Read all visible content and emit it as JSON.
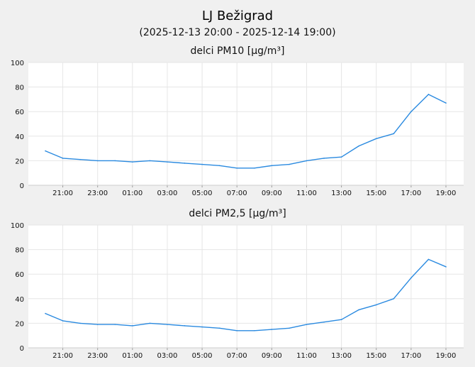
{
  "header": {
    "title": "LJ Bežigrad",
    "subtitle": "(2025-12-13 20:00 - 2025-12-14 19:00)"
  },
  "colors": {
    "background": "#f0f0f0",
    "plot_background": "#ffffff",
    "line": "#2a8ae0",
    "grid": "#e6e6e6"
  },
  "chart_data": [
    {
      "type": "line",
      "title": "delci PM10 [µg/m³]",
      "x_tick_labels": [
        "21:00",
        "23:00",
        "01:00",
        "03:00",
        "05:00",
        "07:00",
        "09:00",
        "11:00",
        "13:00",
        "15:00",
        "17:00",
        "19:00"
      ],
      "x": [
        "20:00",
        "21:00",
        "22:00",
        "23:00",
        "00:00",
        "01:00",
        "02:00",
        "03:00",
        "04:00",
        "05:00",
        "06:00",
        "07:00",
        "08:00",
        "09:00",
        "10:00",
        "11:00",
        "12:00",
        "13:00",
        "14:00",
        "15:00",
        "16:00",
        "17:00",
        "18:00",
        "19:00"
      ],
      "series": [
        {
          "values": [
            28,
            22,
            21,
            20,
            20,
            19,
            20,
            19,
            18,
            17,
            16,
            14,
            14,
            16,
            17,
            20,
            22,
            23,
            32,
            38,
            42,
            60,
            74,
            67
          ]
        }
      ],
      "y_ticks": [
        0,
        20,
        40,
        60,
        80,
        100
      ],
      "ylim": [
        0,
        100
      ],
      "grid": true
    },
    {
      "type": "line",
      "title": "delci PM2,5 [µg/m³]",
      "x_tick_labels": [
        "21:00",
        "23:00",
        "01:00",
        "03:00",
        "05:00",
        "07:00",
        "09:00",
        "11:00",
        "13:00",
        "15:00",
        "17:00",
        "19:00"
      ],
      "x": [
        "20:00",
        "21:00",
        "22:00",
        "23:00",
        "00:00",
        "01:00",
        "02:00",
        "03:00",
        "04:00",
        "05:00",
        "06:00",
        "07:00",
        "08:00",
        "09:00",
        "10:00",
        "11:00",
        "12:00",
        "13:00",
        "14:00",
        "15:00",
        "16:00",
        "17:00",
        "18:00",
        "19:00"
      ],
      "series": [
        {
          "values": [
            28,
            22,
            20,
            19,
            19,
            18,
            20,
            19,
            18,
            17,
            16,
            14,
            14,
            15,
            16,
            19,
            21,
            23,
            31,
            35,
            40,
            57,
            72,
            66
          ]
        }
      ],
      "y_ticks": [
        0,
        20,
        40,
        60,
        80,
        100
      ],
      "ylim": [
        0,
        100
      ],
      "grid": true
    }
  ]
}
